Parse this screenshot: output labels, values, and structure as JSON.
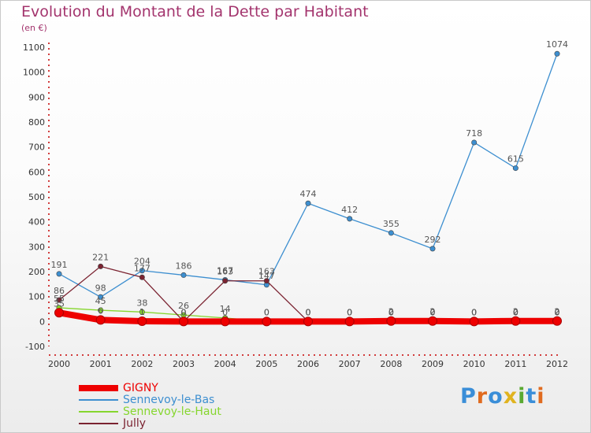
{
  "title": "Evolution du Montant de la Dette par Habitant",
  "subtitle": "(en €)",
  "logo": {
    "text": "Proxiti",
    "letter_colors": [
      "#3a8ed8",
      "#e06b1f",
      "#3a8ed8",
      "#e0b31f",
      "#5aa932",
      "#3a8ed8",
      "#e06b1f"
    ]
  },
  "chart_data": {
    "type": "line",
    "x": [
      "2000",
      "2001",
      "2002",
      "2003",
      "2004",
      "2005",
      "2006",
      "2007",
      "2008",
      "2009",
      "2010",
      "2011",
      "2012"
    ],
    "ylim": [
      -100,
      1100
    ],
    "yticks": [
      "-100",
      "0",
      "100",
      "200",
      "300",
      "400",
      "500",
      "600",
      "700",
      "800",
      "900",
      "1000",
      "1100"
    ],
    "ytick_values": [
      -100,
      0,
      100,
      200,
      300,
      400,
      500,
      600,
      700,
      800,
      900,
      1000,
      1100
    ],
    "grid": false,
    "legend_position": "bottom-left",
    "series": [
      {
        "name": "GIGNY",
        "color": "#ee0000",
        "values": [
          35,
          6,
          1,
          0,
          0,
          0,
          0,
          0,
          2,
          2,
          0,
          2,
          2
        ],
        "labels": [
          "35",
          "6",
          "1",
          "0",
          "0",
          "0",
          "0",
          "0",
          "2",
          "2",
          "0",
          "2",
          "2"
        ]
      },
      {
        "name": "Sennevoy-le-Bas",
        "color": "#3d8fd0",
        "values": [
          191,
          98,
          204,
          186,
          167,
          147,
          474,
          412,
          355,
          292,
          718,
          615,
          1074
        ],
        "labels": [
          "191",
          "98",
          "204",
          "186",
          "167",
          "147",
          "474",
          "412",
          "355",
          "292",
          "718",
          "615",
          "1074"
        ]
      },
      {
        "name": "Sennevoy-le-Haut",
        "color": "#86d62e",
        "values": [
          55,
          45,
          38,
          26,
          14,
          0,
          0,
          0,
          0,
          0,
          0,
          0,
          0
        ],
        "labels": [
          "55",
          "45",
          "38",
          "26",
          "14",
          "0",
          "0",
          "0",
          "0",
          "0",
          "0",
          "0",
          "0"
        ]
      },
      {
        "name": "Jully",
        "color": "#7b2331",
        "values": [
          86,
          221,
          177,
          0,
          163,
          163,
          0,
          0,
          0,
          0,
          0,
          0,
          0
        ],
        "labels": [
          "86",
          "221",
          "177",
          "0",
          "163",
          "163",
          "0",
          "0",
          "0",
          "0",
          "0",
          "0",
          "0"
        ]
      }
    ]
  }
}
